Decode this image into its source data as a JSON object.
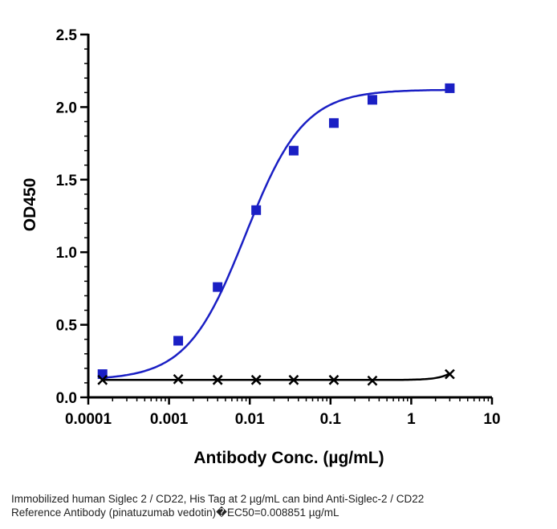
{
  "chart_data": {
    "type": "scatter",
    "xlabel": "Antibody Conc. (µg/mL)",
    "ylabel": "OD450",
    "xscale": "log",
    "xlim": [
      0.0001,
      10
    ],
    "ylim": [
      0,
      2.5
    ],
    "x_tick_labels": [
      "0.0001",
      "0.001",
      "0.01",
      "0.1",
      "1",
      "10"
    ],
    "y_tick_labels": [
      "0.0",
      "0.5",
      "1.0",
      "1.5",
      "2.0",
      "2.5"
    ],
    "grid": false,
    "series": [
      {
        "marker": "square",
        "color": "#1a1fc4",
        "x": [
          0.00015,
          0.0013,
          0.004,
          0.012,
          0.035,
          0.11,
          0.33,
          3.0
        ],
        "y": [
          0.16,
          0.39,
          0.76,
          1.29,
          1.7,
          1.89,
          2.05,
          2.13
        ],
        "fit": {
          "bottom": 0.12,
          "top": 2.12,
          "ec50": 0.008851,
          "hill": 1.2
        }
      },
      {
        "marker": "x",
        "color": "#000000",
        "x": [
          0.00015,
          0.0013,
          0.004,
          0.012,
          0.035,
          0.11,
          0.33,
          3.0
        ],
        "y": [
          0.12,
          0.125,
          0.12,
          0.12,
          0.12,
          0.12,
          0.115,
          0.16
        ]
      }
    ]
  },
  "caption": {
    "line1": "Immobilized human Siglec 2 / CD22,  His Tag at 2  µg/mL can bind  Anti-Siglec-2 / CD22",
    "line2": "Reference Antibody (pinatuzumab vedotin)�EC50=0.008851 µg/mL"
  }
}
